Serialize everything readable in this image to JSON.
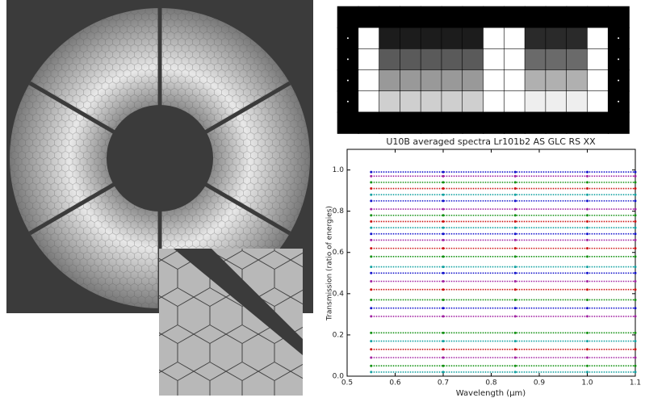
{
  "chart_data": {
    "type": "line",
    "title": "U10B averaged spectra Lr101b2   AS GLC RS XX",
    "x_label": "Wavelength (μm)",
    "y_label": "Transmission (ratio of energies)",
    "xlim": [
      0.5,
      1.1
    ],
    "ylim": [
      0,
      1.1
    ],
    "xticks": [
      0.5,
      0.6,
      0.7,
      0.8,
      0.9,
      {
        "value": 1,
        "label": "1.0"
      },
      1.1
    ],
    "yticks": [
      {
        "value": 0,
        "label": "0.0"
      },
      0.2,
      0.4,
      0.6,
      0.8,
      {
        "value": 1,
        "label": "1.0"
      }
    ],
    "x": [
      0.55,
      0.7,
      0.85,
      1.0,
      1.1
    ],
    "series": [
      {
        "color": "#1010cc",
        "values": [
          0.99,
          0.99,
          0.99,
          0.99,
          0.99
        ]
      },
      {
        "color": "#a020a0",
        "values": [
          0.97,
          0.97,
          0.97,
          0.97,
          0.97
        ]
      },
      {
        "color": "#109010",
        "values": [
          0.94,
          0.94,
          0.94,
          0.94,
          0.94
        ]
      },
      {
        "color": "#cc1010",
        "values": [
          0.91,
          0.91,
          0.91,
          0.91,
          0.91
        ]
      },
      {
        "color": "#10a0a0",
        "values": [
          0.88,
          0.88,
          0.88,
          0.88,
          0.88
        ]
      },
      {
        "color": "#1010cc",
        "values": [
          0.85,
          0.85,
          0.85,
          0.85,
          0.85
        ]
      },
      {
        "color": "#a020a0",
        "values": [
          0.81,
          0.81,
          0.81,
          0.81,
          0.81
        ]
      },
      {
        "color": "#109010",
        "values": [
          0.78,
          0.78,
          0.78,
          0.78,
          0.78
        ]
      },
      {
        "color": "#cc1010",
        "values": [
          0.75,
          0.75,
          0.75,
          0.75,
          0.75
        ]
      },
      {
        "color": "#10a0a0",
        "values": [
          0.72,
          0.72,
          0.72,
          0.72,
          0.72
        ]
      },
      {
        "color": "#1010cc",
        "values": [
          0.69,
          0.69,
          0.69,
          0.69,
          0.69
        ]
      },
      {
        "color": "#a020a0",
        "values": [
          0.66,
          0.66,
          0.66,
          0.66,
          0.66
        ]
      },
      {
        "color": "#cc1010",
        "values": [
          0.62,
          0.62,
          0.62,
          0.62,
          0.62
        ]
      },
      {
        "color": "#109010",
        "values": [
          0.58,
          0.58,
          0.58,
          0.58,
          0.58
        ]
      },
      {
        "color": "#10a0a0",
        "values": [
          0.53,
          0.53,
          0.53,
          0.53,
          0.53
        ]
      },
      {
        "color": "#1010cc",
        "values": [
          0.5,
          0.5,
          0.5,
          0.5,
          0.5
        ]
      },
      {
        "color": "#a020a0",
        "values": [
          0.46,
          0.46,
          0.46,
          0.46,
          0.46
        ]
      },
      {
        "color": "#cc1010",
        "values": [
          0.42,
          0.42,
          0.42,
          0.42,
          0.42
        ]
      },
      {
        "color": "#109010",
        "values": [
          0.37,
          0.37,
          0.37,
          0.37,
          0.37
        ]
      },
      {
        "color": "#1010cc",
        "values": [
          0.33,
          0.33,
          0.33,
          0.33,
          0.33
        ]
      },
      {
        "color": "#a020a0",
        "values": [
          0.29,
          0.29,
          0.29,
          0.29,
          0.29
        ]
      },
      {
        "color": "#109010",
        "values": [
          0.21,
          0.21,
          0.21,
          0.21,
          0.21
        ]
      },
      {
        "color": "#10a0a0",
        "values": [
          0.17,
          0.17,
          0.17,
          0.17,
          0.17
        ]
      },
      {
        "color": "#cc1010",
        "values": [
          0.13,
          0.13,
          0.13,
          0.13,
          0.13
        ]
      },
      {
        "color": "#a020a0",
        "values": [
          0.09,
          0.09,
          0.09,
          0.09,
          0.09
        ]
      },
      {
        "color": "#109010",
        "values": [
          0.05,
          0.05,
          0.05,
          0.05,
          0.05
        ]
      },
      {
        "color": "#10a0a0",
        "values": [
          0.02,
          0.02,
          0.02,
          0.02,
          0.02
        ]
      }
    ]
  }
}
